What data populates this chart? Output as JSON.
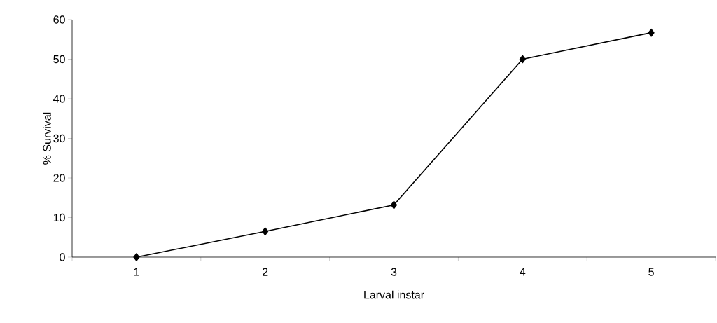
{
  "chart_data": {
    "type": "line",
    "xlabel": "Larval instar",
    "ylabel": "% Survival",
    "categories": [
      "1",
      "2",
      "3",
      "4",
      "5"
    ],
    "values": [
      0,
      6.5,
      13.2,
      50,
      56.7
    ],
    "color": "#000000",
    "marker": "diamond",
    "line_style": "solid",
    "ylim": [
      0,
      60
    ],
    "yticks": [
      0,
      10,
      20,
      30,
      40,
      50,
      60
    ]
  }
}
